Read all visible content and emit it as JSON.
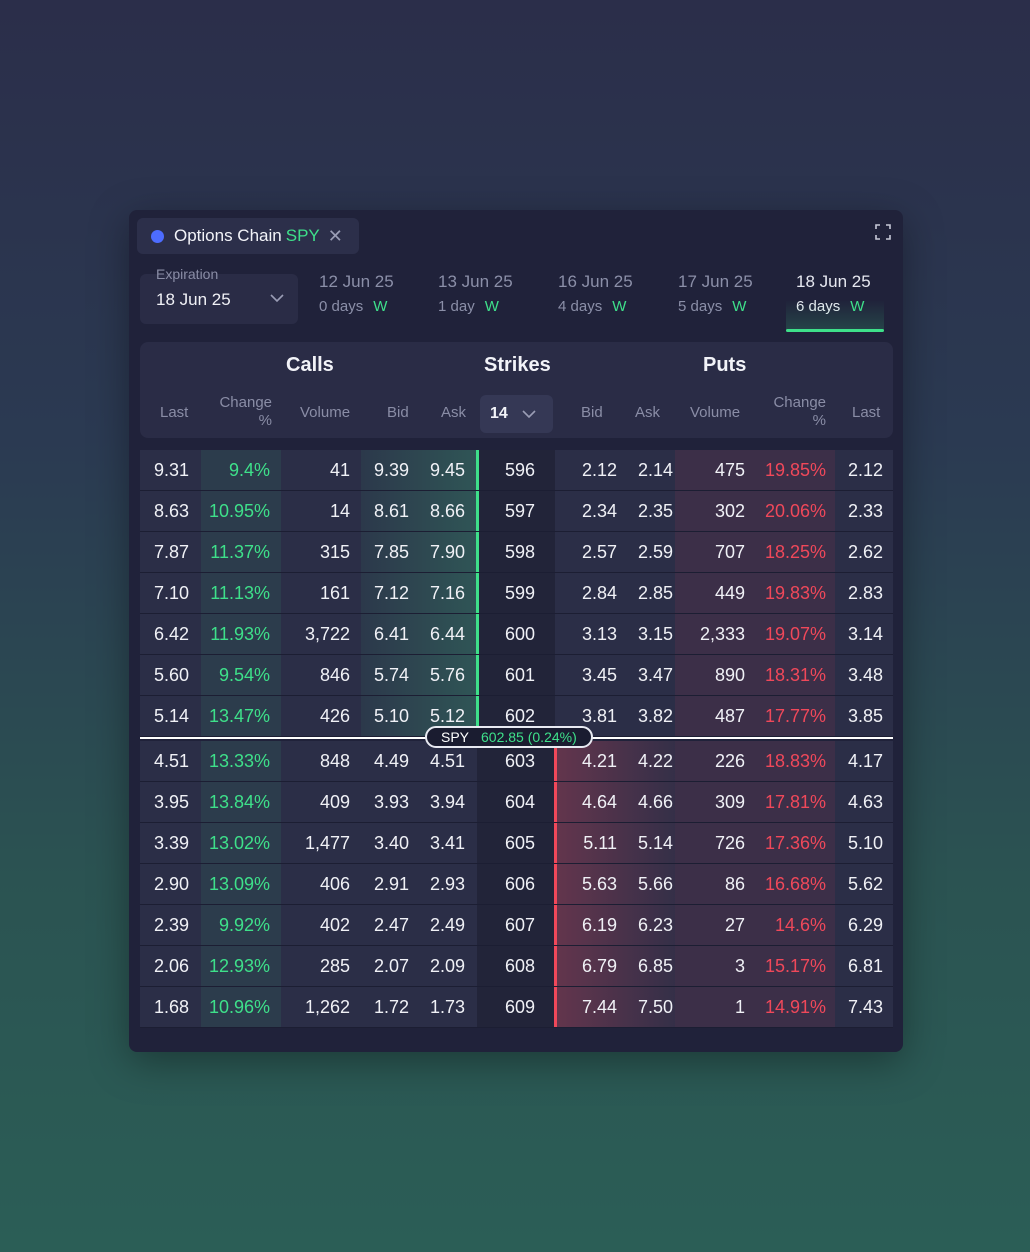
{
  "tab": {
    "title": "Options Chain",
    "symbol": "SPY",
    "close": "✕"
  },
  "expiration": {
    "label": "Expiration",
    "value": "18 Jun 25"
  },
  "dates": [
    {
      "date": "12 Jun 25",
      "days": "0 days",
      "tag": "W"
    },
    {
      "date": "13 Jun 25",
      "days": "1 day",
      "tag": "W"
    },
    {
      "date": "16 Jun 25",
      "days": "4 days",
      "tag": "W"
    },
    {
      "date": "17 Jun 25",
      "days": "5 days",
      "tag": "W"
    },
    {
      "date": "18 Jun 25",
      "days": "6 days",
      "tag": "W",
      "active": true
    }
  ],
  "groups": {
    "calls": "Calls",
    "strikes": "Strikes",
    "puts": "Puts"
  },
  "columns": {
    "last": "Last",
    "change": "Change",
    "pct": "%",
    "volume": "Volume",
    "bid": "Bid",
    "ask": "Ask"
  },
  "strike_count": "14",
  "spot": {
    "symbol": "SPY",
    "price": "602.85 (0.24%)"
  },
  "rows": [
    {
      "c_last": "9.31",
      "c_chg": "9.4%",
      "c_vol": "41",
      "c_bid": "9.39",
      "c_ask": "9.45",
      "strike": "596",
      "p_bid": "2.12",
      "p_ask": "2.14",
      "p_vol": "475",
      "p_chg": "19.85%",
      "p_last": "2.12"
    },
    {
      "c_last": "8.63",
      "c_chg": "10.95%",
      "c_vol": "14",
      "c_bid": "8.61",
      "c_ask": "8.66",
      "strike": "597",
      "p_bid": "2.34",
      "p_ask": "2.35",
      "p_vol": "302",
      "p_chg": "20.06%",
      "p_last": "2.33"
    },
    {
      "c_last": "7.87",
      "c_chg": "11.37%",
      "c_vol": "315",
      "c_bid": "7.85",
      "c_ask": "7.90",
      "strike": "598",
      "p_bid": "2.57",
      "p_ask": "2.59",
      "p_vol": "707",
      "p_chg": "18.25%",
      "p_last": "2.62"
    },
    {
      "c_last": "7.10",
      "c_chg": "11.13%",
      "c_vol": "161",
      "c_bid": "7.12",
      "c_ask": "7.16",
      "strike": "599",
      "p_bid": "2.84",
      "p_ask": "2.85",
      "p_vol": "449",
      "p_chg": "19.83%",
      "p_last": "2.83"
    },
    {
      "c_last": "6.42",
      "c_chg": "11.93%",
      "c_vol": "3,722",
      "c_bid": "6.41",
      "c_ask": "6.44",
      "strike": "600",
      "p_bid": "3.13",
      "p_ask": "3.15",
      "p_vol": "2,333",
      "p_chg": "19.07%",
      "p_last": "3.14"
    },
    {
      "c_last": "5.60",
      "c_chg": "9.54%",
      "c_vol": "846",
      "c_bid": "5.74",
      "c_ask": "5.76",
      "strike": "601",
      "p_bid": "3.45",
      "p_ask": "3.47",
      "p_vol": "890",
      "p_chg": "18.31%",
      "p_last": "3.48"
    },
    {
      "c_last": "5.14",
      "c_chg": "13.47%",
      "c_vol": "426",
      "c_bid": "5.10",
      "c_ask": "5.12",
      "strike": "602",
      "p_bid": "3.81",
      "p_ask": "3.82",
      "p_vol": "487",
      "p_chg": "17.77%",
      "p_last": "3.85"
    },
    {
      "c_last": "4.51",
      "c_chg": "13.33%",
      "c_vol": "848",
      "c_bid": "4.49",
      "c_ask": "4.51",
      "strike": "603",
      "p_bid": "4.21",
      "p_ask": "4.22",
      "p_vol": "226",
      "p_chg": "18.83%",
      "p_last": "4.17"
    },
    {
      "c_last": "3.95",
      "c_chg": "13.84%",
      "c_vol": "409",
      "c_bid": "3.93",
      "c_ask": "3.94",
      "strike": "604",
      "p_bid": "4.64",
      "p_ask": "4.66",
      "p_vol": "309",
      "p_chg": "17.81%",
      "p_last": "4.63"
    },
    {
      "c_last": "3.39",
      "c_chg": "13.02%",
      "c_vol": "1,477",
      "c_bid": "3.40",
      "c_ask": "3.41",
      "strike": "605",
      "p_bid": "5.11",
      "p_ask": "5.14",
      "p_vol": "726",
      "p_chg": "17.36%",
      "p_last": "5.10"
    },
    {
      "c_last": "2.90",
      "c_chg": "13.09%",
      "c_vol": "406",
      "c_bid": "2.91",
      "c_ask": "2.93",
      "strike": "606",
      "p_bid": "5.63",
      "p_ask": "5.66",
      "p_vol": "86",
      "p_chg": "16.68%",
      "p_last": "5.62"
    },
    {
      "c_last": "2.39",
      "c_chg": "9.92%",
      "c_vol": "402",
      "c_bid": "2.47",
      "c_ask": "2.49",
      "strike": "607",
      "p_bid": "6.19",
      "p_ask": "6.23",
      "p_vol": "27",
      "p_chg": "14.6%",
      "p_last": "6.29"
    },
    {
      "c_last": "2.06",
      "c_chg": "12.93%",
      "c_vol": "285",
      "c_bid": "2.07",
      "c_ask": "2.09",
      "strike": "608",
      "p_bid": "6.79",
      "p_ask": "6.85",
      "p_vol": "3",
      "p_chg": "15.17%",
      "p_last": "6.81"
    },
    {
      "c_last": "1.68",
      "c_chg": "10.96%",
      "c_vol": "1,262",
      "c_bid": "1.72",
      "c_ask": "1.73",
      "strike": "609",
      "p_bid": "7.44",
      "p_ask": "7.50",
      "p_vol": "1",
      "p_chg": "14.91%",
      "p_last": "7.43"
    }
  ],
  "colors": {
    "positive": "#3ee08a",
    "negative": "#f0485a",
    "accent": "#4d6cff"
  }
}
